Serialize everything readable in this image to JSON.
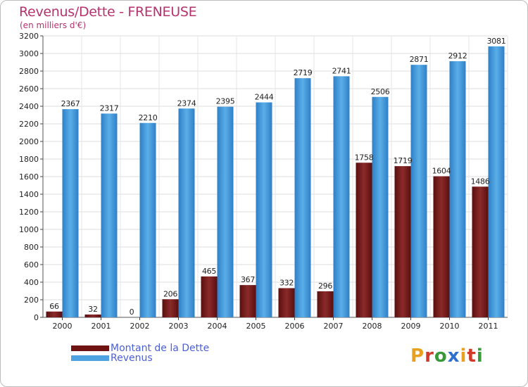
{
  "title": "Revenus/Dette - FRENEUSE",
  "subtitle": "(en milliers d'€)",
  "logo": "Proxiti",
  "colors": {
    "title": "#b5336e",
    "dette": "#7a1f1f",
    "revenus": "#4fa3e0",
    "legend_text": "#4a5fd8"
  },
  "chart_data": {
    "type": "bar",
    "title": "Revenus/Dette - FRENEUSE",
    "subtitle": "(en milliers d'€)",
    "categories": [
      "2000",
      "2001",
      "2002",
      "2003",
      "2004",
      "2005",
      "2006",
      "2007",
      "2008",
      "2009",
      "2010",
      "2011"
    ],
    "series": [
      {
        "name": "Montant de la Dette",
        "values": [
          66,
          32,
          0,
          206,
          465,
          367,
          332,
          296,
          1758,
          1719,
          1604,
          1486
        ]
      },
      {
        "name": "Revenus",
        "values": [
          2367,
          2317,
          2210,
          2374,
          2395,
          2444,
          2719,
          2741,
          2506,
          2871,
          2912,
          3081
        ]
      }
    ],
    "ylim": [
      0,
      3200
    ],
    "yticks": [
      0,
      200,
      400,
      600,
      800,
      1000,
      1200,
      1400,
      1600,
      1800,
      2000,
      2200,
      2400,
      2600,
      2800,
      3000,
      3200
    ],
    "grid": true,
    "legend": "bottom-left"
  }
}
